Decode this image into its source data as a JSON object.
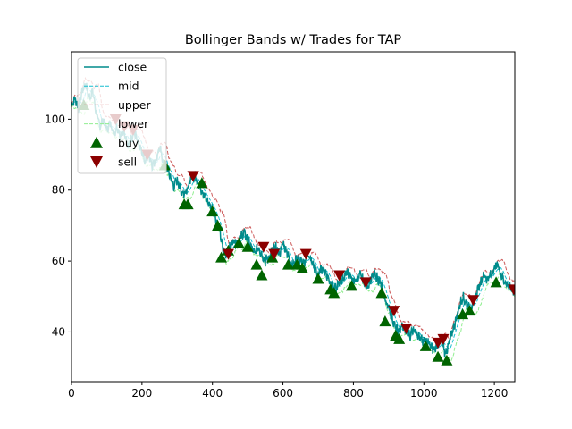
{
  "chart_data": {
    "type": "line",
    "title": "Bollinger Bands w/ Trades for TAP",
    "xlabel": "",
    "ylabel": "",
    "xlim": [
      0,
      1258
    ],
    "ylim": [
      26,
      119
    ],
    "xticks": [
      0,
      200,
      400,
      600,
      800,
      1000,
      1200
    ],
    "yticks": [
      40,
      60,
      80,
      100
    ],
    "grid": false,
    "legend": {
      "placement": "top-left",
      "entries": [
        {
          "label": "close",
          "marker": "line",
          "color": "#008b8b"
        },
        {
          "label": "mid",
          "marker": "dash",
          "color": "#17becf"
        },
        {
          "label": "upper",
          "marker": "dash",
          "color": "#cd5c5c"
        },
        {
          "label": "lower",
          "marker": "dash",
          "color": "#90ee90"
        },
        {
          "label": "buy",
          "marker": "triangle-up",
          "color": "#006400"
        },
        {
          "label": "sell",
          "marker": "triangle-down",
          "color": "#8b0000"
        }
      ]
    },
    "series_colors": {
      "close": "#008b8b",
      "mid": "#17becf",
      "upper": "#cd5c5c",
      "lower": "#90ee90",
      "buy": "#006400",
      "sell": "#8b0000"
    },
    "close_anchors": [
      [
        0,
        104
      ],
      [
        10,
        106
      ],
      [
        20,
        103
      ],
      [
        30,
        108
      ],
      [
        40,
        110
      ],
      [
        50,
        106
      ],
      [
        60,
        108
      ],
      [
        70,
        102
      ],
      [
        80,
        98
      ],
      [
        90,
        100
      ],
      [
        100,
        97
      ],
      [
        110,
        99
      ],
      [
        120,
        96
      ],
      [
        130,
        98
      ],
      [
        140,
        95
      ],
      [
        150,
        97
      ],
      [
        160,
        92
      ],
      [
        170,
        94
      ],
      [
        180,
        96
      ],
      [
        190,
        93
      ],
      [
        200,
        91
      ],
      [
        210,
        88
      ],
      [
        220,
        90
      ],
      [
        230,
        87
      ],
      [
        240,
        89
      ],
      [
        250,
        92
      ],
      [
        260,
        88
      ],
      [
        270,
        86
      ],
      [
        280,
        84
      ],
      [
        290,
        81
      ],
      [
        300,
        83
      ],
      [
        310,
        80
      ],
      [
        320,
        79
      ],
      [
        330,
        81
      ],
      [
        340,
        83
      ],
      [
        350,
        84
      ],
      [
        360,
        82
      ],
      [
        370,
        80
      ],
      [
        380,
        78
      ],
      [
        390,
        76
      ],
      [
        400,
        75
      ],
      [
        410,
        72
      ],
      [
        420,
        69
      ],
      [
        430,
        63
      ],
      [
        440,
        62
      ],
      [
        450,
        64
      ],
      [
        460,
        66
      ],
      [
        470,
        65
      ],
      [
        480,
        67
      ],
      [
        490,
        68
      ],
      [
        500,
        66
      ],
      [
        510,
        64
      ],
      [
        520,
        62
      ],
      [
        530,
        64
      ],
      [
        540,
        62
      ],
      [
        550,
        60
      ],
      [
        560,
        61
      ],
      [
        570,
        63
      ],
      [
        580,
        64
      ],
      [
        590,
        62
      ],
      [
        600,
        65
      ],
      [
        610,
        63
      ],
      [
        620,
        60
      ],
      [
        630,
        59
      ],
      [
        640,
        61
      ],
      [
        650,
        60
      ],
      [
        660,
        59
      ],
      [
        670,
        62
      ],
      [
        680,
        60
      ],
      [
        690,
        58
      ],
      [
        700,
        56
      ],
      [
        710,
        58
      ],
      [
        720,
        57
      ],
      [
        730,
        55
      ],
      [
        740,
        53
      ],
      [
        750,
        52
      ],
      [
        760,
        54
      ],
      [
        770,
        55
      ],
      [
        780,
        57
      ],
      [
        790,
        56
      ],
      [
        800,
        54
      ],
      [
        810,
        55
      ],
      [
        820,
        56
      ],
      [
        830,
        54
      ],
      [
        840,
        53
      ],
      [
        850,
        55
      ],
      [
        860,
        56
      ],
      [
        870,
        55
      ],
      [
        880,
        53
      ],
      [
        890,
        49
      ],
      [
        900,
        47
      ],
      [
        910,
        44
      ],
      [
        920,
        41
      ],
      [
        930,
        40
      ],
      [
        940,
        42
      ],
      [
        950,
        40
      ],
      [
        960,
        39
      ],
      [
        970,
        41
      ],
      [
        980,
        40
      ],
      [
        990,
        38
      ],
      [
        1000,
        37
      ],
      [
        1010,
        38
      ],
      [
        1020,
        36
      ],
      [
        1030,
        35
      ],
      [
        1040,
        36
      ],
      [
        1050,
        38
      ],
      [
        1060,
        34
      ],
      [
        1070,
        36
      ],
      [
        1080,
        40
      ],
      [
        1090,
        43
      ],
      [
        1100,
        47
      ],
      [
        1110,
        50
      ],
      [
        1120,
        48
      ],
      [
        1130,
        47
      ],
      [
        1140,
        48
      ],
      [
        1150,
        51
      ],
      [
        1160,
        54
      ],
      [
        1170,
        56
      ],
      [
        1180,
        55
      ],
      [
        1190,
        56
      ],
      [
        1200,
        58
      ],
      [
        1210,
        59
      ],
      [
        1220,
        56
      ],
      [
        1230,
        54
      ],
      [
        1240,
        53
      ],
      [
        1250,
        52
      ],
      [
        1258,
        51
      ]
    ],
    "buy_points": [
      [
        35,
        104
      ],
      [
        265,
        87
      ],
      [
        320,
        76
      ],
      [
        330,
        76
      ],
      [
        370,
        82
      ],
      [
        400,
        74
      ],
      [
        415,
        70
      ],
      [
        425,
        61
      ],
      [
        445,
        63
      ],
      [
        475,
        65
      ],
      [
        500,
        64
      ],
      [
        525,
        59
      ],
      [
        540,
        56
      ],
      [
        570,
        61
      ],
      [
        615,
        59
      ],
      [
        640,
        59
      ],
      [
        655,
        58
      ],
      [
        700,
        55
      ],
      [
        735,
        52
      ],
      [
        745,
        51
      ],
      [
        795,
        53
      ],
      [
        880,
        51
      ],
      [
        890,
        43
      ],
      [
        920,
        39
      ],
      [
        930,
        38
      ],
      [
        1005,
        36
      ],
      [
        1040,
        33
      ],
      [
        1065,
        32
      ],
      [
        1110,
        45
      ],
      [
        1130,
        46
      ],
      [
        1205,
        54
      ]
    ],
    "sell_points": [
      [
        125,
        100
      ],
      [
        150,
        98
      ],
      [
        175,
        97
      ],
      [
        215,
        90
      ],
      [
        345,
        84
      ],
      [
        445,
        62
      ],
      [
        545,
        64
      ],
      [
        575,
        62
      ],
      [
        665,
        62
      ],
      [
        760,
        56
      ],
      [
        835,
        54
      ],
      [
        915,
        46
      ],
      [
        950,
        41
      ],
      [
        1040,
        37
      ],
      [
        1055,
        38
      ],
      [
        1140,
        49
      ],
      [
        1255,
        52
      ]
    ]
  }
}
